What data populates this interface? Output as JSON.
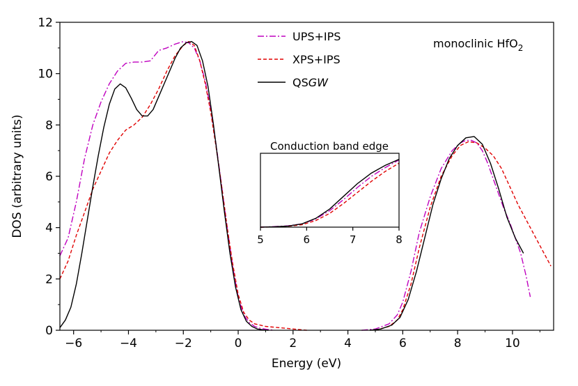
{
  "chart_data": {
    "type": "line",
    "title": "",
    "annotation": {
      "prefix": "monoclinic HfO",
      "subscript": "2"
    },
    "xlabel": "Energy (eV)",
    "ylabel": "DOS (arbitrary units)",
    "xlim": [
      -6.5,
      11.5
    ],
    "ylim": [
      0,
      12
    ],
    "xticks": [
      -6,
      -4,
      -2,
      0,
      2,
      4,
      6,
      8,
      10
    ],
    "yticks": [
      0,
      2,
      4,
      6,
      8,
      10,
      12
    ],
    "grid": false,
    "legend_position": "top-center",
    "series": [
      {
        "name": "UPS+IPS",
        "label_text": "UPS+IPS",
        "color": "#bf00bf",
        "dash": "dashdot",
        "segments": [
          {
            "x": [
              -6.5,
              -6.2,
              -5.9,
              -5.6,
              -5.3,
              -5.0,
              -4.7,
              -4.4,
              -4.1,
              -3.8,
              -3.5,
              -3.2,
              -2.9,
              -2.6,
              -2.3,
              -2.0,
              -1.8,
              -1.6,
              -1.4,
              -1.2,
              -1.0,
              -0.8,
              -0.6,
              -0.4,
              -0.2,
              0.0,
              0.2,
              0.4,
              0.6,
              0.8,
              1.0,
              1.3
            ],
            "y": [
              2.9,
              3.6,
              5.0,
              6.7,
              8.0,
              8.9,
              9.6,
              10.1,
              10.4,
              10.45,
              10.45,
              10.5,
              10.9,
              11.0,
              11.15,
              11.25,
              11.2,
              11.0,
              10.5,
              9.7,
              8.6,
              7.2,
              5.6,
              4.0,
              2.5,
              1.3,
              0.6,
              0.3,
              0.15,
              0.08,
              0.04,
              0.0
            ]
          },
          {
            "x": [
              4.5,
              5.0,
              5.5,
              5.8,
              6.0,
              6.3,
              6.6,
              7.0,
              7.4,
              7.8,
              8.1,
              8.3,
              8.5,
              8.7,
              8.9,
              9.1,
              9.3,
              9.5,
              9.7,
              9.9,
              10.1,
              10.3,
              10.5,
              10.65
            ],
            "y": [
              0.0,
              0.05,
              0.25,
              0.6,
              1.1,
              2.3,
              3.8,
              5.2,
              6.3,
              7.0,
              7.3,
              7.4,
              7.4,
              7.3,
              7.0,
              6.5,
              5.9,
              5.3,
              4.7,
              4.2,
              3.6,
              3.0,
              2.1,
              1.3
            ]
          }
        ]
      },
      {
        "name": "XPS+IPS",
        "label_text": "XPS+IPS",
        "color": "#e00000",
        "dash": "dashed",
        "segments": [
          {
            "x": [
              -6.5,
              -6.2,
              -5.9,
              -5.6,
              -5.3,
              -5.0,
              -4.7,
              -4.4,
              -4.1,
              -3.8,
              -3.5,
              -3.2,
              -2.9,
              -2.6,
              -2.3,
              -2.0,
              -1.8,
              -1.6,
              -1.4,
              -1.2,
              -1.0,
              -0.8,
              -0.6,
              -0.4,
              -0.2,
              0.0,
              0.2,
              0.4,
              0.6,
              0.8,
              1.0,
              1.5,
              2.0,
              2.5
            ],
            "y": [
              2.0,
              2.7,
              3.7,
              4.6,
              5.5,
              6.2,
              6.9,
              7.4,
              7.8,
              8.0,
              8.3,
              8.8,
              9.4,
              10.1,
              10.7,
              11.1,
              11.25,
              11.1,
              10.5,
              9.6,
              8.5,
              7.1,
              5.6,
              4.0,
              2.6,
              1.4,
              0.7,
              0.4,
              0.25,
              0.2,
              0.15,
              0.1,
              0.05,
              0.0
            ]
          },
          {
            "x": [
              5.0,
              5.5,
              5.8,
              6.0,
              6.3,
              6.6,
              7.0,
              7.4,
              7.8,
              8.1,
              8.4,
              8.7,
              9.0,
              9.3,
              9.6,
              9.9,
              10.2,
              10.5,
              10.8,
              11.1,
              11.4
            ],
            "y": [
              0.0,
              0.15,
              0.4,
              0.8,
              1.8,
              3.2,
              4.8,
              6.0,
              6.8,
              7.2,
              7.35,
              7.3,
              7.1,
              6.8,
              6.3,
              5.6,
              4.9,
              4.3,
              3.7,
              3.1,
              2.5
            ]
          }
        ]
      },
      {
        "name": "QSGW",
        "label_prefix": "QS",
        "label_italic": "GW",
        "color": "#000000",
        "dash": "solid",
        "segments": [
          {
            "x": [
              -6.5,
              -6.3,
              -6.1,
              -5.9,
              -5.7,
              -5.5,
              -5.3,
              -5.1,
              -4.9,
              -4.7,
              -4.5,
              -4.3,
              -4.1,
              -3.9,
              -3.7,
              -3.5,
              -3.3,
              -3.1,
              -2.9,
              -2.7,
              -2.5,
              -2.3,
              -2.1,
              -1.9,
              -1.7,
              -1.5,
              -1.3,
              -1.1,
              -0.9,
              -0.7,
              -0.5,
              -0.3,
              -0.1,
              0.1,
              0.3,
              0.5,
              0.7,
              0.9,
              1.1
            ],
            "y": [
              0.1,
              0.4,
              0.9,
              1.8,
              3.0,
              4.3,
              5.6,
              6.8,
              7.9,
              8.8,
              9.4,
              9.6,
              9.45,
              9.05,
              8.6,
              8.35,
              8.35,
              8.6,
              9.1,
              9.6,
              10.1,
              10.6,
              11.0,
              11.2,
              11.25,
              11.1,
              10.5,
              9.5,
              8.0,
              6.3,
              4.6,
              3.0,
              1.7,
              0.8,
              0.35,
              0.15,
              0.05,
              0.02,
              0.0
            ]
          },
          {
            "x": [
              4.8,
              5.2,
              5.6,
              5.9,
              6.2,
              6.5,
              6.8,
              7.1,
              7.4,
              7.7,
              8.0,
              8.3,
              8.6,
              8.9,
              9.2,
              9.5,
              9.8,
              10.1,
              10.4
            ],
            "y": [
              0.0,
              0.05,
              0.2,
              0.5,
              1.2,
              2.3,
              3.6,
              4.9,
              5.9,
              6.7,
              7.2,
              7.5,
              7.55,
              7.25,
              6.5,
              5.5,
              4.4,
              3.6,
              3.0
            ]
          }
        ]
      }
    ],
    "inset": {
      "title": "Conduction band edge",
      "xlim": [
        5,
        8
      ],
      "ylim": [
        0,
        6.7
      ],
      "xticks": [
        5,
        6,
        7,
        8
      ],
      "series": [
        {
          "name": "UPS+IPS",
          "x": [
            5.0,
            5.3,
            5.6,
            5.9,
            6.2,
            6.5,
            6.8,
            7.1,
            7.4,
            7.7,
            8.0
          ],
          "y": [
            0.0,
            0.05,
            0.12,
            0.3,
            0.75,
            1.5,
            2.5,
            3.6,
            4.6,
            5.4,
            6.1
          ]
        },
        {
          "name": "XPS+IPS",
          "x": [
            5.0,
            5.3,
            5.6,
            5.9,
            6.2,
            6.5,
            6.8,
            7.1,
            7.4,
            7.7,
            8.0
          ],
          "y": [
            0.0,
            0.02,
            0.08,
            0.22,
            0.6,
            1.25,
            2.15,
            3.15,
            4.15,
            5.05,
            5.8
          ]
        },
        {
          "name": "QSGW",
          "x": [
            5.0,
            5.3,
            5.6,
            5.9,
            6.2,
            6.5,
            6.8,
            7.1,
            7.4,
            7.7,
            8.0
          ],
          "y": [
            0.0,
            0.03,
            0.1,
            0.3,
            0.8,
            1.65,
            2.8,
            3.95,
            4.9,
            5.6,
            6.15
          ]
        }
      ]
    }
  }
}
